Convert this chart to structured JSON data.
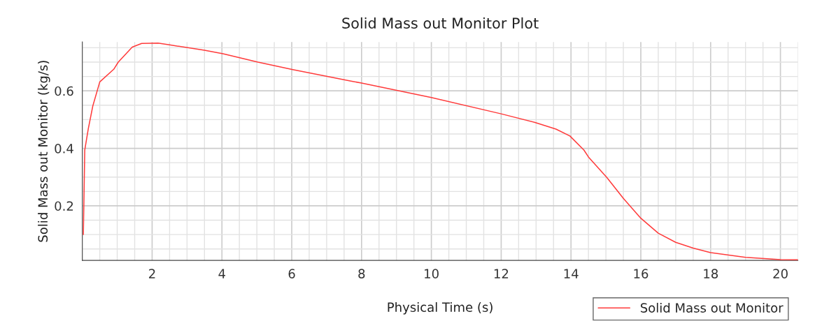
{
  "chart_data": {
    "type": "line",
    "title": "Solid Mass out Monitor Plot",
    "xlabel": "Physical Time (s)",
    "ylabel": "Solid Mass out Monitor (kg/s)",
    "xlim": [
      0,
      20.5
    ],
    "xticks": [
      2,
      4,
      6,
      8,
      10,
      12,
      14,
      16,
      18,
      20
    ],
    "ylim": [
      0.01,
      0.77
    ],
    "yticks": [
      0.2,
      0.4,
      0.6
    ],
    "grid": true,
    "legend": "bottom right",
    "marker": "none",
    "line_style": "solid",
    "series": [
      {
        "name": "Solid Mass out Monitor",
        "color": "#ff3b3b",
        "x": [
          0.03,
          0.07,
          0.17,
          0.3,
          0.5,
          0.9,
          1.03,
          1.43,
          1.7,
          2.17,
          2.5,
          3.5,
          4.03,
          5.03,
          6.03,
          7.7,
          8.0,
          10.0,
          12.0,
          12.97,
          13.57,
          13.97,
          14.37,
          14.5,
          15.03,
          15.5,
          16.0,
          16.5,
          17.0,
          17.5,
          18.0,
          19.0,
          20.0,
          20.5
        ],
        "values": [
          0.1,
          0.394,
          0.467,
          0.547,
          0.631,
          0.675,
          0.7,
          0.752,
          0.765,
          0.766,
          0.76,
          0.741,
          0.729,
          0.7,
          0.674,
          0.634,
          0.627,
          0.577,
          0.52,
          0.49,
          0.467,
          0.443,
          0.394,
          0.37,
          0.298,
          0.226,
          0.157,
          0.105,
          0.073,
          0.053,
          0.037,
          0.021,
          0.013,
          0.012
        ]
      }
    ]
  }
}
